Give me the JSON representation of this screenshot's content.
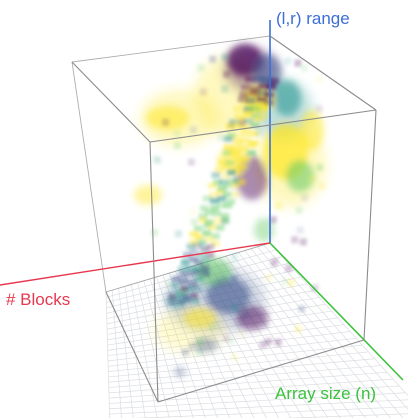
{
  "figure": {
    "axes": {
      "lr_range": {
        "label": "(l,r)  range",
        "color": "#3b6fd8"
      },
      "blocks": {
        "label": "# Blocks",
        "color": "#e8384f"
      },
      "array_size": {
        "label": "Array size (n)",
        "color": "#3cc23c"
      }
    },
    "volume": {
      "colormap": "viridis",
      "palette": [
        "#440154",
        "#3b528b",
        "#21918c",
        "#5ec962",
        "#fde725"
      ],
      "box": "wireframe cube",
      "floor": "grid"
    }
  }
}
